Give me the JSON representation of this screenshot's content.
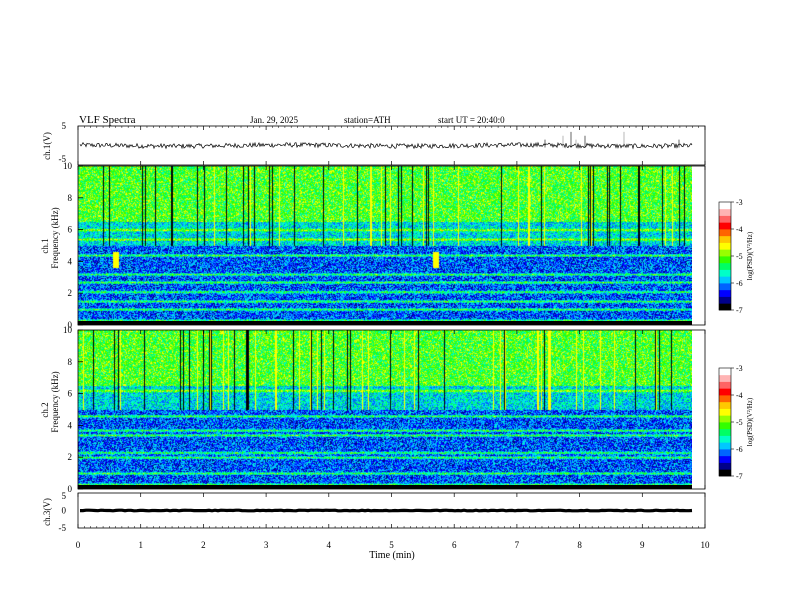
{
  "header": {
    "title": "VLF  Spectra",
    "date": "Jan. 29, 2025",
    "station": "station=ATH",
    "start": "start  UT  =   20:40:0"
  },
  "chart_data": [
    {
      "type": "line",
      "name": "ch1-waveform",
      "ylabel": "ch.1(V)",
      "ylim": [
        -5,
        5
      ],
      "y_ticks": [
        "5",
        "-5"
      ],
      "x_range": [
        0,
        10
      ],
      "baseline_v": 0,
      "noise_amplitude_v": 0.6,
      "line_color": "#000000"
    },
    {
      "type": "heatmap",
      "name": "ch1-spectrogram",
      "ylabel": "ch.1\nFrequency (kHz)",
      "ylim": [
        0,
        10
      ],
      "y_ticks": [
        "0",
        "2",
        "4",
        "6",
        "8",
        "10"
      ],
      "x_range": [
        0,
        10
      ],
      "colorbar": {
        "label": "log(PSD)(V²/Hz)",
        "range": [
          -7,
          -3
        ],
        "ticks": [
          "-3",
          "-4",
          "-5",
          "-6",
          "-7"
        ]
      },
      "band_features_khz": [
        0.3,
        1.0,
        1.5,
        2.1,
        2.7,
        3.2,
        4.4,
        5.4,
        6.0
      ],
      "bursts_min": [
        0.6,
        5.7
      ]
    },
    {
      "type": "heatmap",
      "name": "ch2-spectrogram",
      "ylabel": "ch.2\nFrequency (kHz)",
      "ylim": [
        0,
        10
      ],
      "y_ticks": [
        "0",
        "2",
        "4",
        "6",
        "8",
        "10"
      ],
      "x_range": [
        0,
        10
      ],
      "colorbar": {
        "label": "log(PSD)(V²/Hz)",
        "range": [
          -7,
          -3
        ],
        "ticks": [
          "-3",
          "-4",
          "-5",
          "-6",
          "-7"
        ]
      },
      "band_features_khz": [
        0.3,
        1.0,
        2.0,
        2.3,
        3.4,
        3.7,
        4.6,
        6.2
      ]
    },
    {
      "type": "line",
      "name": "ch3-waveform",
      "ylabel": "ch.3(V)",
      "ylim": [
        -5,
        5
      ],
      "y_ticks": [
        "5",
        "0",
        "-5"
      ],
      "x_range": [
        0,
        10
      ],
      "baseline_v": 0,
      "noise_amplitude_v": 0.1,
      "line_color": "#000000"
    }
  ],
  "xaxis": {
    "label": "Time  (min)",
    "ticks": [
      "0",
      "1",
      "2",
      "3",
      "4",
      "5",
      "6",
      "7",
      "8",
      "9",
      "10"
    ],
    "data_end_min": 9.8
  },
  "colormap": [
    "#000000",
    "#00008a",
    "#0000ff",
    "#0064ff",
    "#00c8ff",
    "#00ffc8",
    "#00ff64",
    "#32ff00",
    "#96ff00",
    "#ffff00",
    "#ffc800",
    "#ff6400",
    "#ff0000",
    "#ff6464",
    "#ffb4b4",
    "#ffffff"
  ]
}
